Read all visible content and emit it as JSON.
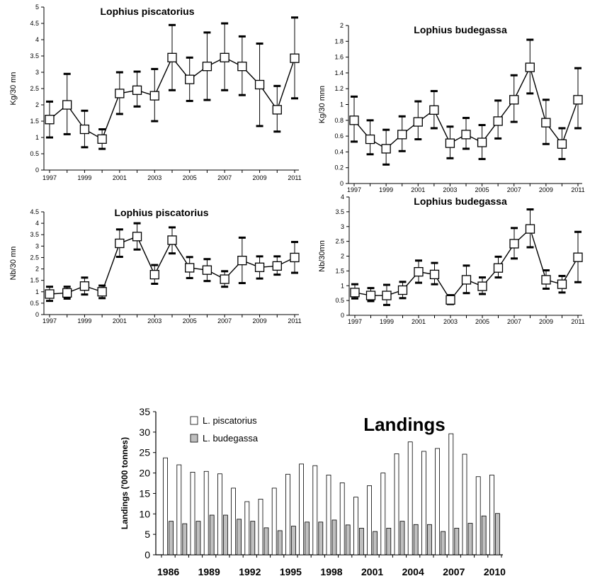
{
  "chart_data": [
    {
      "type": "line",
      "title": "Lophius piscatorius",
      "ylabel": "Kg/30 mn",
      "xlabel": "",
      "ylim": [
        0,
        5
      ],
      "yticks": [
        "0",
        "0.5",
        "1",
        "1.5",
        "2",
        "2.5",
        "3",
        "3.5",
        "4",
        "4.5",
        "5"
      ],
      "xticks": [
        "1997",
        "1999",
        "2001",
        "2003",
        "2005",
        "2007",
        "2009",
        "2011"
      ],
      "x": [
        1997,
        1998,
        1999,
        2000,
        2001,
        2002,
        2003,
        2004,
        2005,
        2006,
        2007,
        2008,
        2009,
        2010,
        2011
      ],
      "values": [
        1.55,
        2.0,
        1.25,
        0.95,
        2.35,
        2.45,
        2.28,
        3.45,
        2.78,
        3.18,
        3.45,
        3.18,
        2.62,
        1.85,
        3.43
      ],
      "err_low": [
        1.0,
        1.1,
        0.7,
        0.65,
        1.72,
        1.95,
        1.5,
        2.45,
        2.12,
        2.15,
        2.45,
        2.3,
        1.35,
        1.18,
        2.2
      ],
      "err_high": [
        2.1,
        2.95,
        1.82,
        1.25,
        3.0,
        3.02,
        3.1,
        4.45,
        3.45,
        4.22,
        4.5,
        4.1,
        3.88,
        2.58,
        4.68
      ]
    },
    {
      "type": "line",
      "title": "Lophius budegassa",
      "ylabel": "Kg/30 mnn",
      "xlabel": "",
      "ylim": [
        0,
        2
      ],
      "yticks": [
        "0",
        "0.2",
        "0.4",
        "0.6",
        "0.8",
        "1",
        "1.2",
        "1.4",
        "1.6",
        "1.8",
        "2"
      ],
      "xticks": [
        "1997",
        "1999",
        "2001",
        "2003",
        "2005",
        "2007",
        "2009",
        "2011"
      ],
      "x": [
        1997,
        1998,
        1999,
        2000,
        2001,
        2002,
        2003,
        2004,
        2005,
        2006,
        2007,
        2008,
        2009,
        2010,
        2011
      ],
      "values": [
        0.8,
        0.56,
        0.44,
        0.62,
        0.78,
        0.93,
        0.51,
        0.62,
        0.52,
        0.79,
        1.06,
        1.47,
        0.77,
        0.5,
        1.06
      ],
      "err_low": [
        0.53,
        0.37,
        0.24,
        0.41,
        0.56,
        0.7,
        0.32,
        0.44,
        0.31,
        0.57,
        0.78,
        1.14,
        0.5,
        0.31,
        0.7
      ],
      "err_high": [
        1.1,
        0.8,
        0.68,
        0.85,
        1.04,
        1.17,
        0.72,
        0.83,
        0.74,
        1.05,
        1.37,
        1.82,
        1.06,
        0.7,
        1.46
      ]
    },
    {
      "type": "line",
      "title": "Lophius piscatorius",
      "ylabel": "Nb/30 mn",
      "xlabel": "",
      "ylim": [
        0,
        4.5
      ],
      "yticks": [
        "0",
        "0.5",
        "1",
        "1.5",
        "2",
        "2.5",
        "3",
        "3.5",
        "4",
        "4.5"
      ],
      "xticks": [
        "1997",
        "1999",
        "2001",
        "2003",
        "2005",
        "2007",
        "2009",
        "2011"
      ],
      "x": [
        1997,
        1998,
        1999,
        2000,
        2001,
        2002,
        2003,
        2004,
        2005,
        2006,
        2007,
        2008,
        2009,
        2010,
        2011
      ],
      "values": [
        0.9,
        0.95,
        1.25,
        1.0,
        3.12,
        3.42,
        1.75,
        3.26,
        2.05,
        1.95,
        1.55,
        2.37,
        2.07,
        2.13,
        2.5
      ],
      "err_low": [
        0.6,
        0.7,
        0.88,
        0.72,
        2.53,
        2.85,
        1.35,
        2.68,
        1.6,
        1.47,
        1.22,
        1.38,
        1.58,
        1.75,
        1.83
      ],
      "err_high": [
        1.22,
        1.22,
        1.62,
        1.27,
        3.73,
        4.0,
        2.17,
        3.82,
        2.52,
        2.43,
        1.9,
        3.37,
        2.55,
        2.55,
        3.18
      ]
    },
    {
      "type": "line",
      "title": "Lophius budegassa",
      "ylabel": "Nb/30mn",
      "xlabel": "",
      "ylim": [
        0,
        4
      ],
      "yticks": [
        "0",
        "0.5",
        "1",
        "1.5",
        "2",
        "2.5",
        "3",
        "3.5",
        "4"
      ],
      "xticks": [
        "1997",
        "1999",
        "2001",
        "2003",
        "2005",
        "2007",
        "2009",
        "2011"
      ],
      "x": [
        1997,
        1998,
        1999,
        2000,
        2001,
        2002,
        2003,
        2004,
        2005,
        2006,
        2007,
        2008,
        2009,
        2010,
        2011
      ],
      "values": [
        0.77,
        0.67,
        0.67,
        0.85,
        1.47,
        1.38,
        0.52,
        1.2,
        0.98,
        1.6,
        2.42,
        2.92,
        1.2,
        1.05,
        1.96
      ],
      "err_low": [
        0.57,
        0.48,
        0.35,
        0.58,
        1.1,
        1.05,
        0.38,
        0.75,
        0.72,
        1.28,
        1.92,
        2.3,
        0.9,
        0.77,
        1.12
      ],
      "err_high": [
        1.05,
        0.92,
        1.03,
        1.13,
        1.85,
        1.77,
        0.68,
        1.68,
        1.28,
        1.98,
        2.95,
        3.58,
        1.52,
        1.33,
        2.82
      ]
    },
    {
      "type": "bar",
      "title": "Landings",
      "ylabel": "Landings ('000 tonnes)",
      "xlabel": "",
      "ylim": [
        0,
        35
      ],
      "yticks": [
        "0",
        "5",
        "10",
        "15",
        "20",
        "25",
        "30",
        "35"
      ],
      "xticks": [
        "1986",
        "1989",
        "1992",
        "1995",
        "1998",
        "2001",
        "2004",
        "2007",
        "2010"
      ],
      "categories": [
        1986,
        1987,
        1988,
        1989,
        1990,
        1991,
        1992,
        1993,
        1994,
        1995,
        1996,
        1997,
        1998,
        1999,
        2000,
        2001,
        2002,
        2003,
        2004,
        2005,
        2006,
        2007,
        2008,
        2009,
        2010
      ],
      "legend_position": "top-left",
      "series": [
        {
          "name": "L. piscatorius",
          "color": "#ffffff",
          "values": [
            23.7,
            22.0,
            20.2,
            20.4,
            19.8,
            16.3,
            13.0,
            13.6,
            16.3,
            19.7,
            22.2,
            21.8,
            19.5,
            17.6,
            14.1,
            16.9,
            20.0,
            24.7,
            27.6,
            25.3,
            26.0,
            29.6,
            24.6,
            19.1,
            19.5
          ]
        },
        {
          "name": "L. budegassa",
          "color": "#bfbfbf",
          "values": [
            8.2,
            7.6,
            8.2,
            9.7,
            9.7,
            8.7,
            8.2,
            6.6,
            5.9,
            7.0,
            8.0,
            8.0,
            8.5,
            7.3,
            6.5,
            5.7,
            6.5,
            8.2,
            7.4,
            7.4,
            5.7,
            6.5,
            7.7,
            9.5,
            10.1
          ]
        }
      ]
    }
  ]
}
